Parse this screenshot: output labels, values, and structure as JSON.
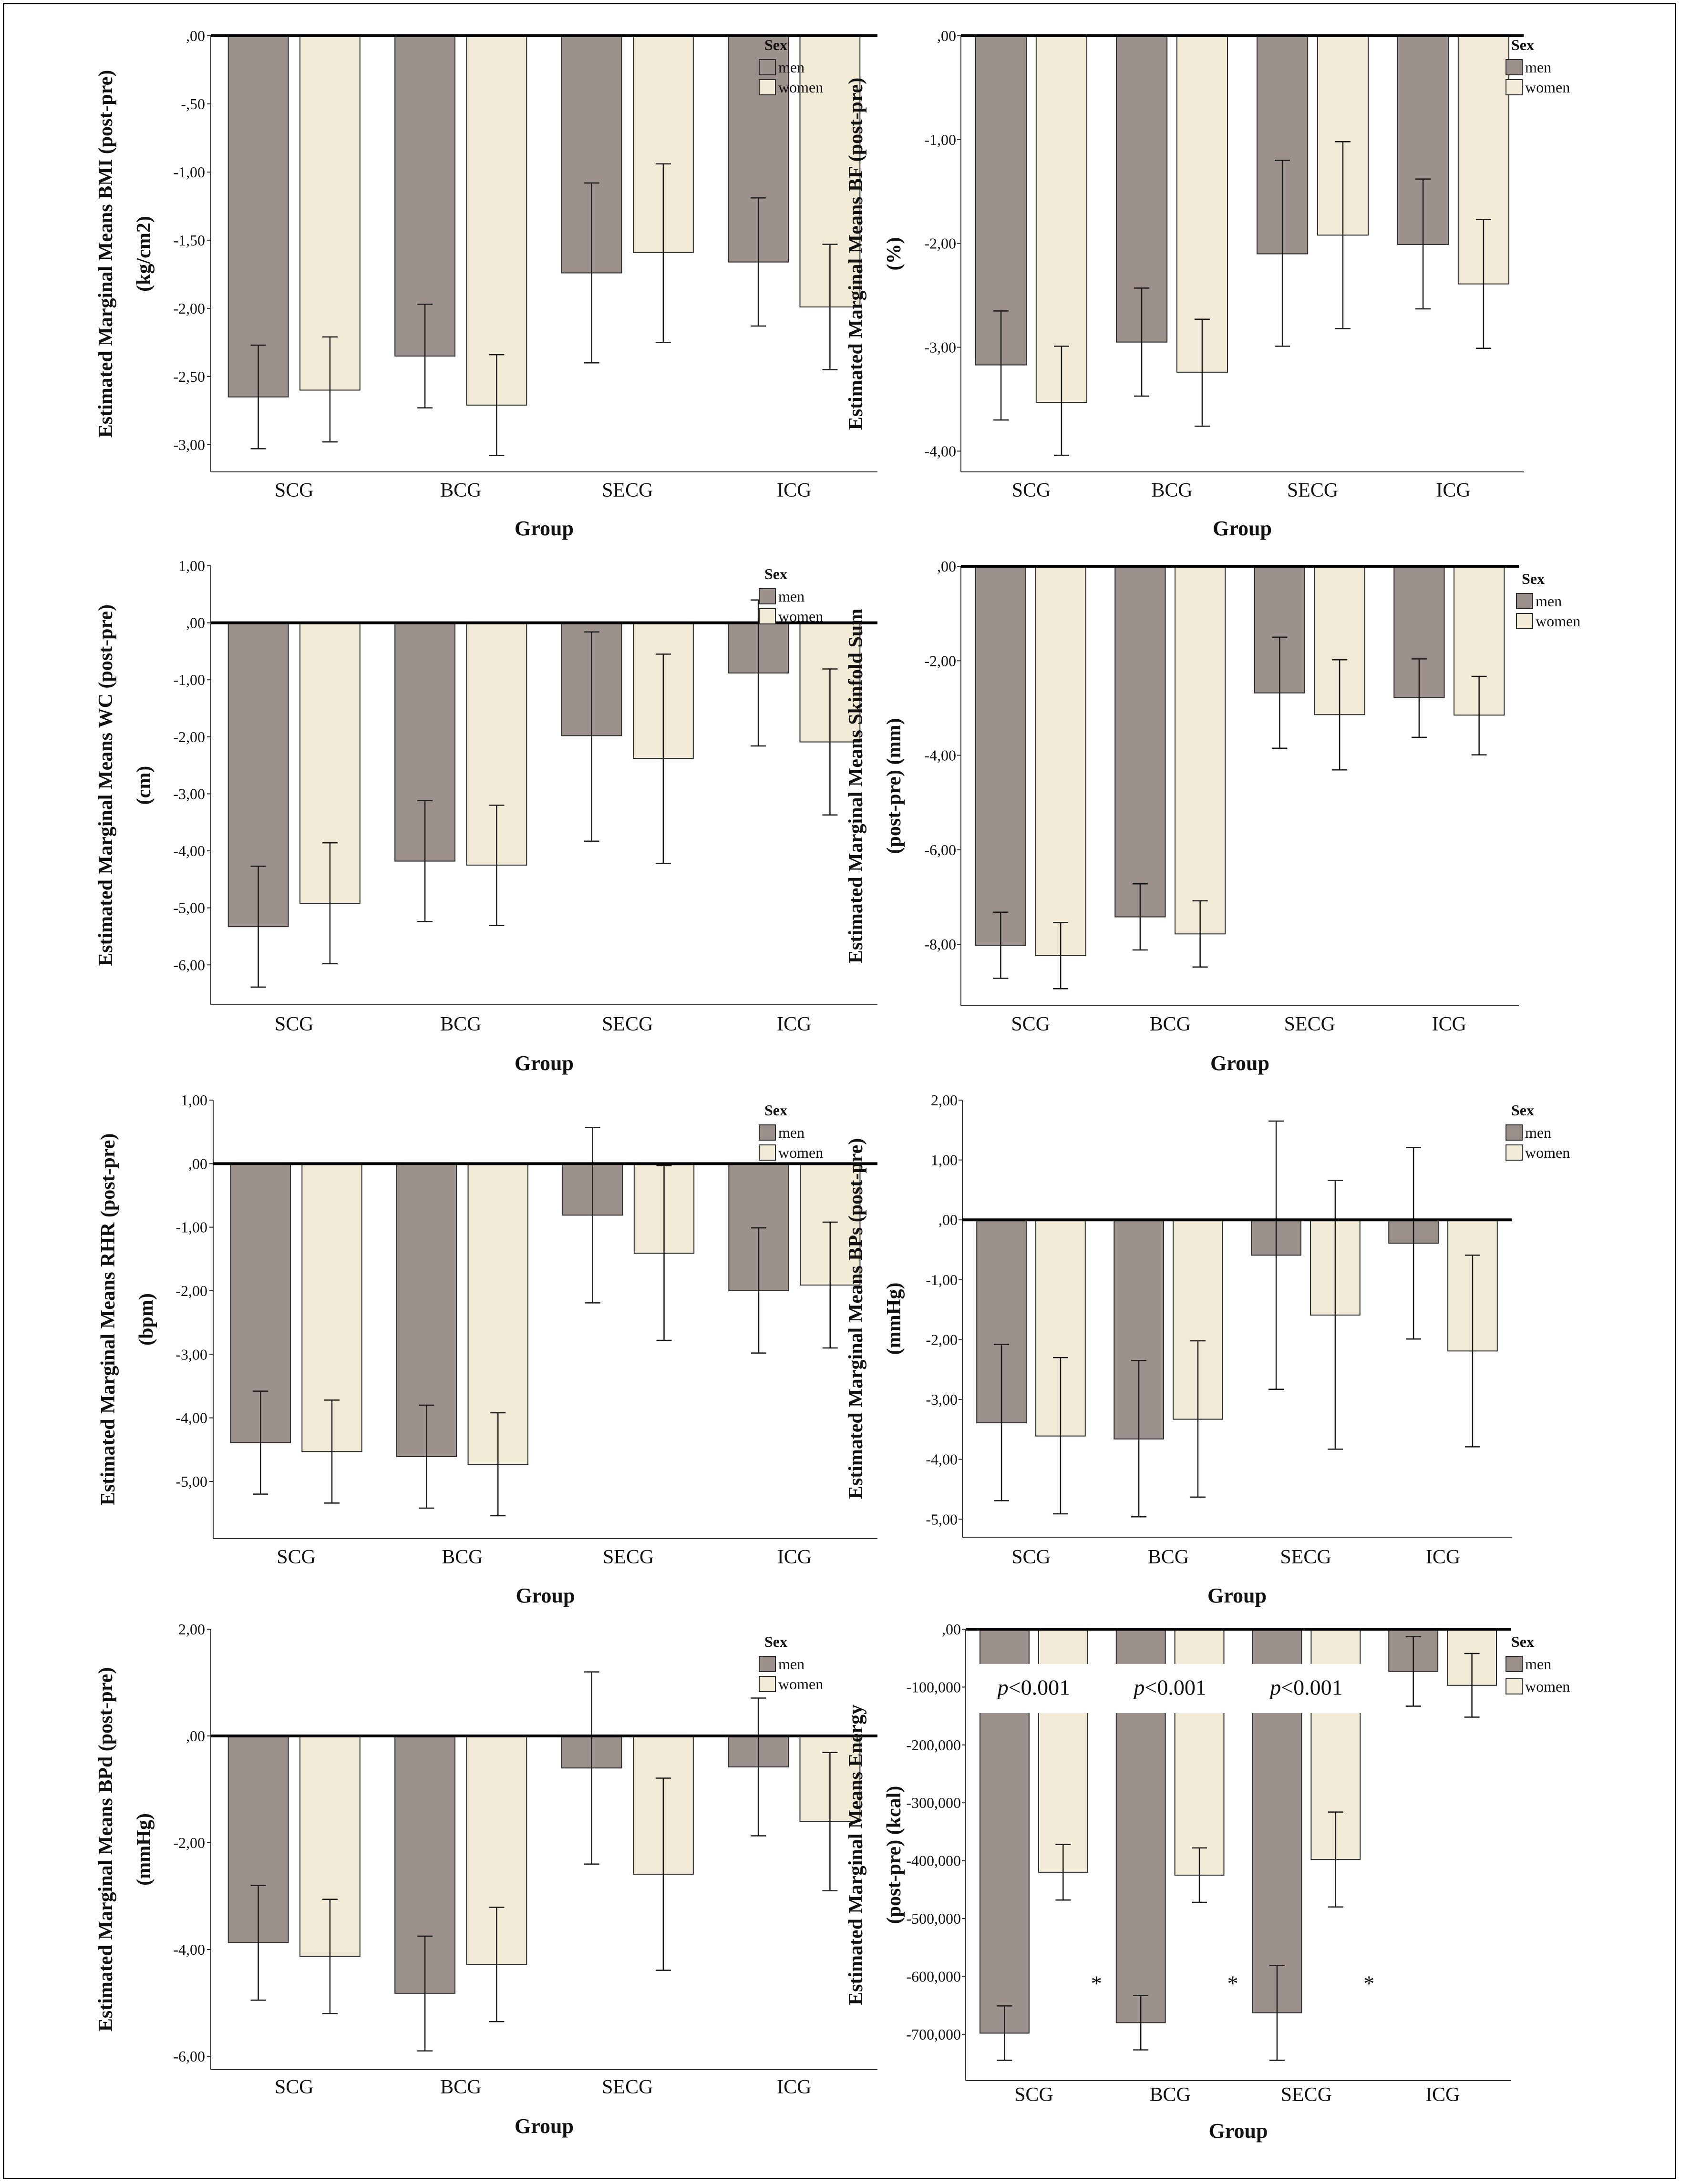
{
  "chart_data": [
    {
      "type": "bar",
      "ylabel": [
        "Estimated Marginal Means BMI (post-pre)",
        "(kg/cm2)"
      ],
      "xlabel": "Group",
      "categories": [
        "SCG",
        "BCG",
        "SECG",
        "ICG"
      ],
      "ylim": [
        -3.2,
        0
      ],
      "yticks": [
        0,
        -0.5,
        -1,
        -1.5,
        -2,
        -2.5,
        -3
      ],
      "ytick_labels": [
        ",00",
        "-,50",
        "-1,00",
        "-1,50",
        "-2,00",
        "-2,50",
        "-3,00"
      ],
      "legend": {
        "title": "Sex",
        "entries": [
          "men",
          "women"
        ]
      },
      "series": [
        {
          "name": "men",
          "values": [
            -2.65,
            -2.35,
            -1.74,
            -1.66
          ],
          "err_low": [
            -3.03,
            -2.73,
            -2.4,
            -2.13
          ],
          "err_high": [
            -2.27,
            -1.97,
            -1.08,
            -1.19
          ]
        },
        {
          "name": "women",
          "values": [
            -2.6,
            -2.71,
            -1.59,
            -1.99
          ],
          "err_low": [
            -2.98,
            -3.08,
            -2.25,
            -2.45
          ],
          "err_high": [
            -2.21,
            -2.34,
            -0.94,
            -1.53
          ]
        }
      ]
    },
    {
      "type": "bar",
      "ylabel": [
        "Estimated Marginal Means BF (post-pre)",
        "(%)"
      ],
      "xlabel": "Group",
      "categories": [
        "SCG",
        "BCG",
        "SECG",
        "ICG"
      ],
      "ylim": [
        -4.2,
        0
      ],
      "yticks": [
        0,
        -1,
        -2,
        -3,
        -4
      ],
      "ytick_labels": [
        ",00",
        "-1,00",
        "-2,00",
        "-3,00",
        "-4,00"
      ],
      "legend": {
        "title": "Sex",
        "entries": [
          "men",
          "women"
        ]
      },
      "series": [
        {
          "name": "men",
          "values": [
            -3.17,
            -2.95,
            -2.1,
            -2.01
          ],
          "err_low": [
            -3.7,
            -3.47,
            -2.99,
            -2.63
          ],
          "err_high": [
            -2.65,
            -2.43,
            -1.2,
            -1.38
          ]
        },
        {
          "name": "women",
          "values": [
            -3.53,
            -3.24,
            -1.92,
            -2.39
          ],
          "err_low": [
            -4.04,
            -3.76,
            -2.82,
            -3.01
          ],
          "err_high": [
            -2.99,
            -2.73,
            -1.02,
            -1.77
          ]
        }
      ]
    },
    {
      "type": "bar",
      "ylabel": [
        "Estimated Marginal Means WC (post-pre)",
        "(cm)"
      ],
      "xlabel": "Group",
      "categories": [
        "SCG",
        "BCG",
        "SECG",
        "ICG"
      ],
      "ylim": [
        -6.7,
        1
      ],
      "yticks": [
        1,
        0,
        -1,
        -2,
        -3,
        -4,
        -5,
        -6
      ],
      "ytick_labels": [
        "1,00",
        ",00",
        "-1,00",
        "-2,00",
        "-3,00",
        "-4,00",
        "-5,00",
        "-6,00"
      ],
      "legend": {
        "title": "Sex",
        "entries": [
          "men",
          "women"
        ]
      },
      "series": [
        {
          "name": "men",
          "values": [
            -5.33,
            -4.18,
            -1.98,
            -0.88
          ],
          "err_low": [
            -6.39,
            -5.24,
            -3.83,
            -2.16
          ],
          "err_high": [
            -4.27,
            -3.12,
            -0.16,
            0.4
          ]
        },
        {
          "name": "women",
          "values": [
            -4.92,
            -4.25,
            -2.38,
            -2.09
          ],
          "err_low": [
            -5.98,
            -5.31,
            -4.22,
            -3.37
          ],
          "err_high": [
            -3.86,
            -3.2,
            -0.55,
            -0.81
          ]
        }
      ]
    },
    {
      "type": "bar",
      "ylabel": [
        "Estimated Marginal Means Skinfold Sum",
        "(post-pre) (mm)"
      ],
      "xlabel": "Group",
      "categories": [
        "SCG",
        "BCG",
        "SECG",
        "ICG"
      ],
      "ylim": [
        -9.3,
        0
      ],
      "yticks": [
        0,
        -2,
        -4,
        -6,
        -8
      ],
      "ytick_labels": [
        ",00",
        "-2,00",
        "-4,00",
        "-6,00",
        "-8,00"
      ],
      "legend": {
        "title": "Sex",
        "entries": [
          "men",
          "women"
        ]
      },
      "series": [
        {
          "name": "men",
          "values": [
            -8.02,
            -7.42,
            -2.68,
            -2.78
          ],
          "err_low": [
            -8.72,
            -8.12,
            -3.85,
            -3.62
          ],
          "err_high": [
            -7.32,
            -6.72,
            -1.5,
            -1.96
          ]
        },
        {
          "name": "women",
          "values": [
            -8.24,
            -7.78,
            -3.14,
            -3.15
          ],
          "err_low": [
            -8.94,
            -8.48,
            -4.31,
            -3.99
          ],
          "err_high": [
            -7.54,
            -7.08,
            -1.98,
            -2.33
          ]
        }
      ]
    },
    {
      "type": "bar",
      "ylabel": [
        "Estimated Marginal Means RHR (post-pre)",
        "(bpm)"
      ],
      "xlabel": "Group",
      "categories": [
        "SCG",
        "BCG",
        "SECG",
        "ICG"
      ],
      "ylim": [
        -5.9,
        1
      ],
      "yticks": [
        1,
        0,
        -1,
        -2,
        -3,
        -4,
        -5
      ],
      "ytick_labels": [
        "1,00",
        ",00",
        "-1,00",
        "-2,00",
        "-3,00",
        "-4,00",
        "-5,00"
      ],
      "legend": {
        "title": "Sex",
        "entries": [
          "men",
          "women"
        ]
      },
      "series": [
        {
          "name": "men",
          "values": [
            -4.39,
            -4.61,
            -0.81,
            -2.0
          ],
          "err_low": [
            -5.2,
            -5.42,
            -2.19,
            -2.98
          ],
          "err_high": [
            -3.58,
            -3.8,
            0.57,
            -1.01
          ]
        },
        {
          "name": "women",
          "values": [
            -4.53,
            -4.73,
            -1.41,
            -1.91
          ],
          "err_low": [
            -5.34,
            -5.54,
            -2.78,
            -2.9
          ],
          "err_high": [
            -3.72,
            -3.92,
            -0.03,
            -0.92
          ]
        }
      ]
    },
    {
      "type": "bar",
      "ylabel": [
        "Estimated Marginal Means BPs (post-pre)",
        "(mmHg)"
      ],
      "xlabel": "Group",
      "categories": [
        "SCG",
        "BCG",
        "SECG",
        "ICG"
      ],
      "ylim": [
        -5.3,
        2
      ],
      "yticks": [
        2,
        1,
        0,
        -1,
        -2,
        -3,
        -4,
        -5
      ],
      "ytick_labels": [
        "2,00",
        "1,00",
        ",00",
        "-1,00",
        "-2,00",
        "-3,00",
        "-4,00",
        "-5,00"
      ],
      "legend": {
        "title": "Sex",
        "entries": [
          "men",
          "women"
        ]
      },
      "series": [
        {
          "name": "men",
          "values": [
            -3.39,
            -3.66,
            -0.59,
            -0.39
          ],
          "err_low": [
            -4.69,
            -4.96,
            -2.83,
            -1.99
          ],
          "err_high": [
            -2.08,
            -2.35,
            1.65,
            1.21
          ]
        },
        {
          "name": "women",
          "values": [
            -3.61,
            -3.33,
            -1.59,
            -2.19
          ],
          "err_low": [
            -4.91,
            -4.63,
            -3.83,
            -3.79
          ],
          "err_high": [
            -2.3,
            -2.02,
            0.66,
            -0.59
          ]
        }
      ]
    },
    {
      "type": "bar",
      "ylabel": [
        "Estimated Marginal Means BPd (post-pre)",
        "(mmHg)"
      ],
      "xlabel": "Group",
      "categories": [
        "SCG",
        "BCG",
        "SECG",
        "ICG"
      ],
      "ylim": [
        -6.25,
        2
      ],
      "yticks": [
        2,
        0,
        -2,
        -4,
        -6
      ],
      "ytick_labels": [
        "2,00",
        ",00",
        "-2,00",
        "-4,00",
        "-6,00"
      ],
      "legend": {
        "title": "Sex",
        "entries": [
          "men",
          "women"
        ]
      },
      "series": [
        {
          "name": "men",
          "values": [
            -3.87,
            -4.82,
            -0.6,
            -0.58
          ],
          "err_low": [
            -4.95,
            -5.9,
            -2.4,
            -1.87
          ],
          "err_high": [
            -2.8,
            -3.75,
            1.2,
            0.71
          ]
        },
        {
          "name": "women",
          "values": [
            -4.13,
            -4.28,
            -2.59,
            -1.6
          ],
          "err_low": [
            -5.2,
            -5.35,
            -4.39,
            -2.9
          ],
          "err_high": [
            -3.06,
            -3.21,
            -0.79,
            -0.31
          ]
        }
      ]
    },
    {
      "type": "bar",
      "ylabel": [
        "Estimated Marginal Means Energy",
        "(post-pre) (kcal)"
      ],
      "xlabel": "Group",
      "categories": [
        "SCG",
        "BCG",
        "SECG",
        "ICG"
      ],
      "ylim": [
        -780,
        0
      ],
      "yticks": [
        0,
        -100,
        -200,
        -300,
        -400,
        -500,
        -600,
        -700
      ],
      "ytick_labels": [
        ",00",
        "-100,000",
        "-200,000",
        "-300,000",
        "-400,000",
        "-500,000",
        "-600,000",
        "-700,000"
      ],
      "legend": {
        "title": "Sex",
        "entries": [
          "men",
          "women"
        ]
      },
      "series": [
        {
          "name": "men",
          "values": [
            -698,
            -680,
            -663,
            -73
          ],
          "err_low": [
            -745,
            -727,
            -745,
            -133
          ],
          "err_high": [
            -651,
            -633,
            -581,
            -13
          ]
        },
        {
          "name": "women",
          "values": [
            -420,
            -425,
            -398,
            -97
          ],
          "err_low": [
            -468,
            -472,
            -480,
            -152
          ],
          "err_high": [
            -372,
            -378,
            -316,
            -42
          ]
        }
      ],
      "annotations": [
        {
          "group": "SCG",
          "pvalue_prefix": "p",
          "pvalue_rest": "<0.001",
          "star": "*"
        },
        {
          "group": "BCG",
          "pvalue_prefix": "p",
          "pvalue_rest": "<0.001",
          "star": "*"
        },
        {
          "group": "SECG",
          "pvalue_prefix": "p",
          "pvalue_rest": "<0.001",
          "star": "*"
        }
      ]
    }
  ],
  "colors": {
    "men": "#9d918e",
    "women": "#f0ead6",
    "bar_outline": "#2b2b2b",
    "error": "#1a1a1a"
  }
}
